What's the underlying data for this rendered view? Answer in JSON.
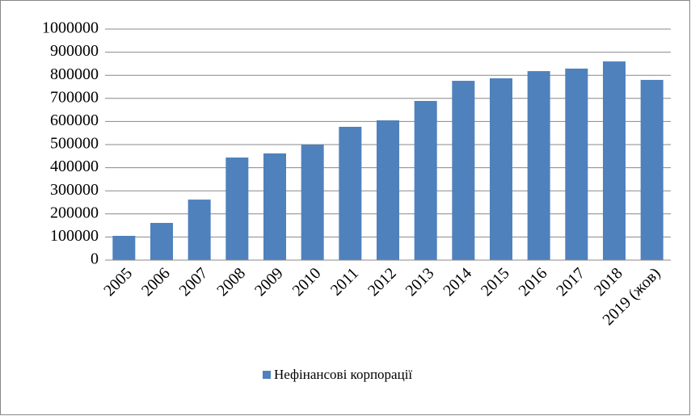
{
  "chart_data": {
    "type": "bar",
    "categories": [
      "2005",
      "2006",
      "2007",
      "2008",
      "2009",
      "2010",
      "2011",
      "2012",
      "2013",
      "2014",
      "2015",
      "2016",
      "2017",
      "2018",
      "2019 (жов)"
    ],
    "series": [
      {
        "name": "Нефінансові корпорації",
        "color": "#4f81bd",
        "values": [
          105000,
          161000,
          262000,
          444000,
          462000,
          500000,
          577000,
          605000,
          689000,
          776000,
          787000,
          818000,
          829000,
          860000,
          780000
        ]
      }
    ],
    "ylim": [
      0,
      1000000
    ],
    "yticks": [
      0,
      100000,
      200000,
      300000,
      400000,
      500000,
      600000,
      700000,
      800000,
      900000,
      1000000
    ],
    "grid": true,
    "legend": "bottom"
  }
}
